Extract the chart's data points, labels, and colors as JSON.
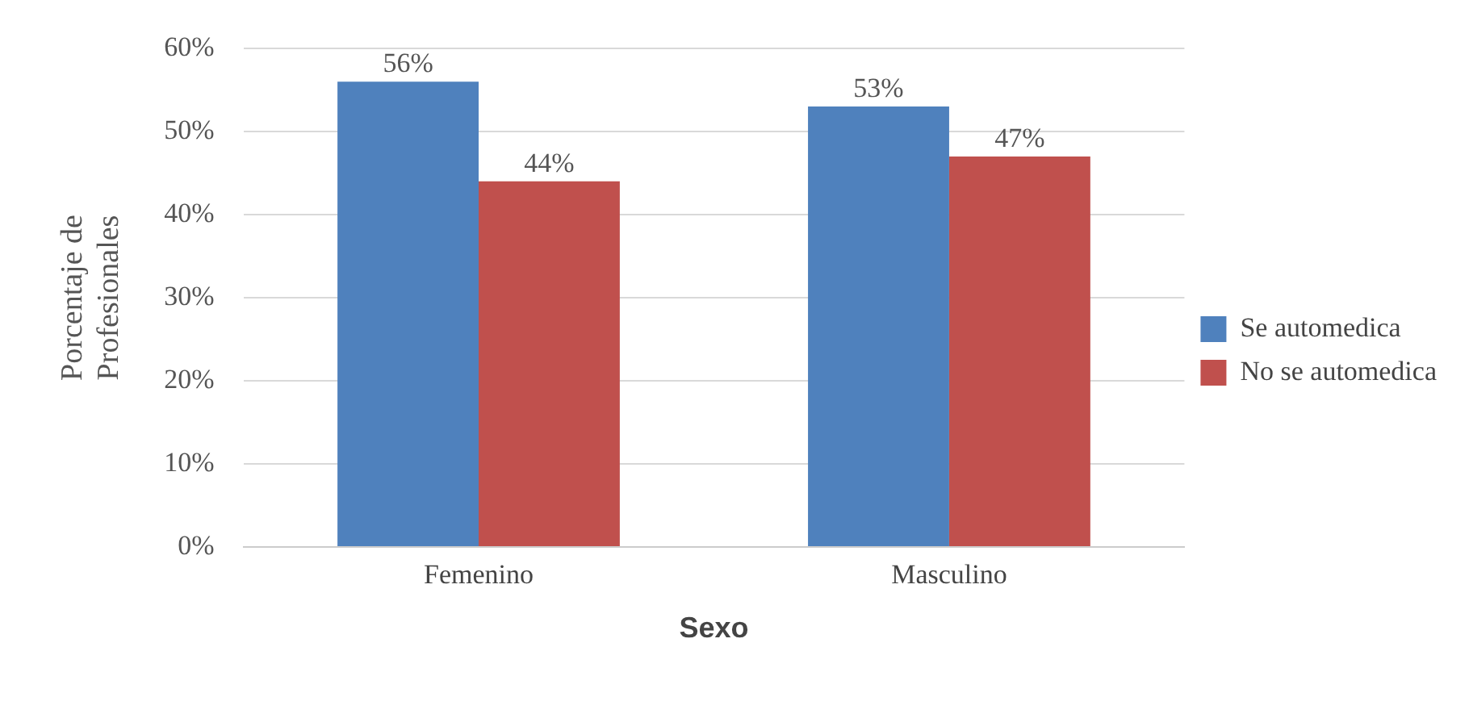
{
  "chart_data": {
    "type": "bar",
    "xlabel": "Sexo",
    "ylabel": "Porcentaje de Profesionales",
    "categories": [
      "Femenino",
      "Masculino"
    ],
    "series": [
      {
        "name": "Se automedica",
        "color": "#4f81bd",
        "values": [
          56,
          53
        ],
        "value_labels": [
          "56%",
          "53%"
        ]
      },
      {
        "name": "No se automedica",
        "color": "#c0504d",
        "values": [
          44,
          47
        ],
        "value_labels": [
          "44%",
          "47%"
        ]
      }
    ],
    "ylim": [
      0,
      60
    ],
    "yticks": [
      {
        "value": 0,
        "label": "0%"
      },
      {
        "value": 10,
        "label": "10%"
      },
      {
        "value": 20,
        "label": "20%"
      },
      {
        "value": 30,
        "label": "30%"
      },
      {
        "value": 40,
        "label": "40%"
      },
      {
        "value": 50,
        "label": "50%"
      },
      {
        "value": 60,
        "label": "60%"
      }
    ],
    "grid": "y",
    "legend": "right"
  }
}
